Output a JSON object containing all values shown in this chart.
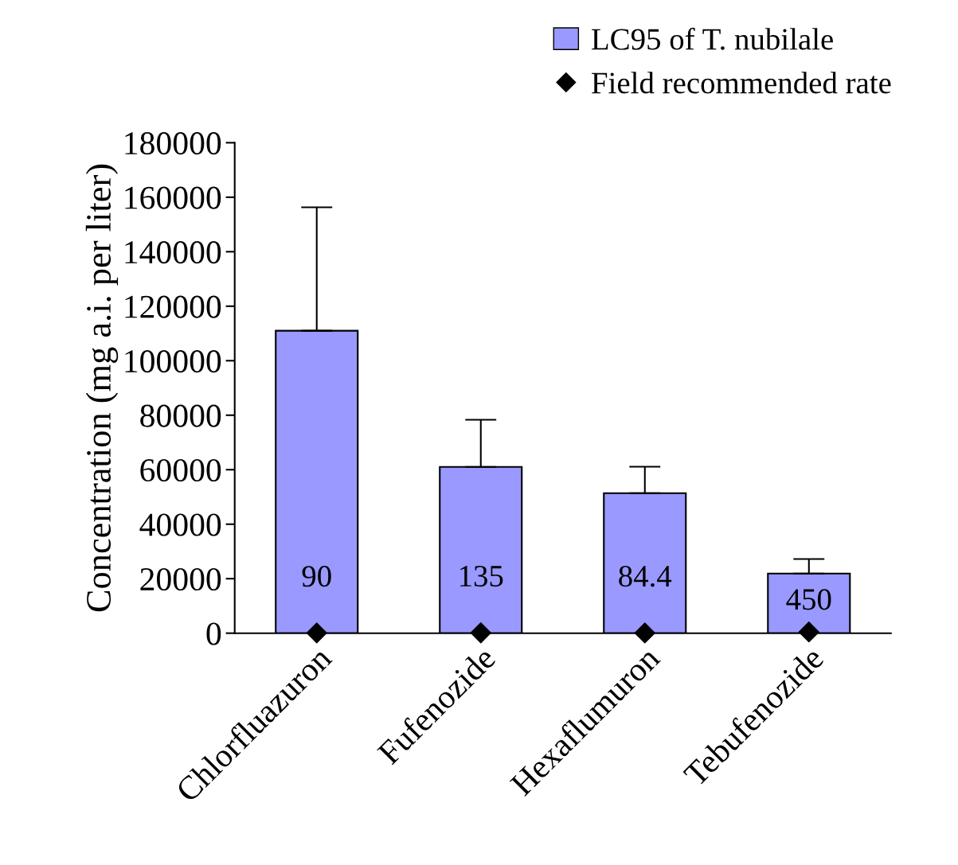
{
  "chart_data": {
    "type": "bar",
    "ylabel": "Concentration (mg a.i. per liter)",
    "categories": [
      "Chlorfluazuron",
      "Fufenozide",
      "Hexaflumuron",
      "Tebufenozide"
    ],
    "series": [
      {
        "name": "LC95 of T. nubilale",
        "color": "#9999ff",
        "values": [
          111000,
          61000,
          51400,
          21900
        ],
        "errors": [
          [
            111000,
            156300
          ],
          [
            61000,
            78300
          ],
          [
            51400,
            61100
          ],
          [
            21900,
            27200
          ]
        ]
      },
      {
        "name": "Field recommended rate",
        "type": "scatter",
        "color": "#000000",
        "marker": "diamond",
        "values": [
          90,
          135,
          84.4,
          450
        ],
        "value_labels": [
          "90",
          "135",
          "84.4",
          "450"
        ]
      }
    ],
    "ylim": [
      0,
      180000
    ],
    "yticks": [
      0,
      20000,
      40000,
      60000,
      80000,
      100000,
      120000,
      140000,
      160000,
      180000
    ],
    "grid": false,
    "legend": "top right"
  }
}
